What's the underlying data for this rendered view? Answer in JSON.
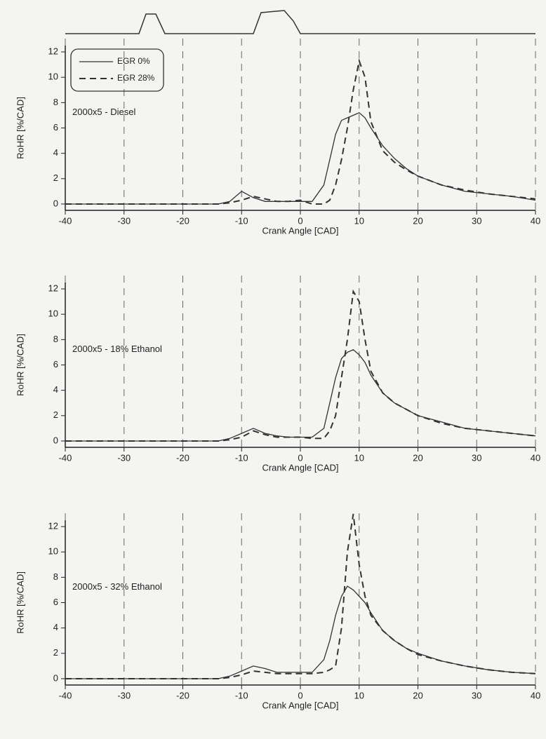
{
  "chart_data": [
    {
      "type": "line",
      "annotation": "2000x5 - Diesel",
      "xlabel": "Crank Angle [CAD]",
      "ylabel": "RoHR [%/CAD]",
      "x": [
        -40,
        -36,
        -32,
        -28,
        -24,
        -20,
        -16,
        -14,
        -12,
        -10,
        -8,
        -6,
        -4,
        -2,
        0,
        2,
        4,
        5,
        6,
        7,
        8,
        9,
        10,
        11,
        12,
        14,
        16,
        18,
        20,
        24,
        28,
        32,
        36,
        40
      ],
      "series": [
        {
          "name": "EGR 0%",
          "color": "#333333",
          "line_style": "solid",
          "values": [
            0,
            0,
            0,
            0,
            0,
            0,
            0,
            0,
            0.2,
            1.0,
            0.5,
            0.2,
            0.2,
            0.2,
            0.2,
            0.2,
            1.5,
            3.5,
            5.5,
            6.6,
            6.8,
            7.0,
            7.2,
            6.8,
            6.0,
            4.6,
            3.6,
            2.8,
            2.2,
            1.5,
            1.0,
            0.8,
            0.6,
            0.3
          ]
        },
        {
          "name": "EGR 28%",
          "color": "#333333",
          "line_style": "dashed",
          "values": [
            0,
            0,
            0,
            0,
            0,
            0,
            0,
            0,
            0.1,
            0.3,
            0.6,
            0.4,
            0.2,
            0.2,
            0.3,
            0,
            0,
            0.3,
            1.5,
            3.5,
            6.0,
            9.0,
            11.3,
            10.0,
            6.5,
            4.2,
            3.3,
            2.7,
            2.2,
            1.5,
            1.1,
            0.8,
            0.6,
            0.4
          ]
        }
      ],
      "xlim": [
        -40,
        40
      ],
      "ylim": [
        -0.5,
        12.5
      ],
      "xticks": [
        -40,
        -30,
        -20,
        -10,
        0,
        10,
        20,
        30,
        40
      ],
      "yticks": [
        0,
        2,
        4,
        6,
        8,
        10,
        12
      ],
      "grid": "x",
      "legend": "upper left"
    },
    {
      "type": "line",
      "annotation": "2000x5 - 18% Ethanol",
      "xlabel": "Crank Angle [CAD]",
      "ylabel": "RoHR [%/CAD]",
      "x": [
        -40,
        -36,
        -32,
        -28,
        -24,
        -20,
        -16,
        -14,
        -12,
        -10,
        -8,
        -6,
        -4,
        -2,
        0,
        2,
        4,
        5,
        6,
        7,
        8,
        9,
        10,
        11,
        12,
        14,
        16,
        18,
        20,
        24,
        28,
        32,
        36,
        40
      ],
      "series": [
        {
          "color": "#333333",
          "line_style": "solid",
          "values": [
            0,
            0,
            0,
            0,
            0,
            0,
            0,
            0,
            0.2,
            0.6,
            1.0,
            0.6,
            0.4,
            0.3,
            0.3,
            0.3,
            1.0,
            3.0,
            5.0,
            6.5,
            7.0,
            7.2,
            6.8,
            6.2,
            5.2,
            3.8,
            3.0,
            2.5,
            2.0,
            1.5,
            1.0,
            0.8,
            0.6,
            0.4
          ]
        },
        {
          "color": "#333333",
          "line_style": "dashed",
          "values": [
            0,
            0,
            0,
            0,
            0,
            0,
            0,
            0,
            0.1,
            0.3,
            0.8,
            0.5,
            0.3,
            0.3,
            0.3,
            0.2,
            0.2,
            0.8,
            2.0,
            5.0,
            8.0,
            11.8,
            11.0,
            8.0,
            5.5,
            3.8,
            3.0,
            2.5,
            2.0,
            1.4,
            1.0,
            0.8,
            0.6,
            0.4
          ]
        }
      ],
      "xlim": [
        -40,
        40
      ],
      "ylim": [
        -0.5,
        12.5
      ],
      "xticks": [
        -40,
        -30,
        -20,
        -10,
        0,
        10,
        20,
        30,
        40
      ],
      "yticks": [
        0,
        2,
        4,
        6,
        8,
        10,
        12
      ],
      "grid": "x"
    },
    {
      "type": "line",
      "annotation": "2000x5 - 32% Ethanol",
      "xlabel": "Crank Angle [CAD]",
      "ylabel": "RoHR [%/CAD]",
      "x": [
        -40,
        -36,
        -32,
        -28,
        -24,
        -20,
        -16,
        -14,
        -12,
        -10,
        -8,
        -6,
        -4,
        -2,
        0,
        2,
        4,
        5,
        6,
        7,
        8,
        9,
        10,
        11,
        12,
        14,
        16,
        18,
        20,
        24,
        28,
        32,
        36,
        40
      ],
      "series": [
        {
          "color": "#333333",
          "line_style": "solid",
          "values": [
            0,
            0,
            0,
            0,
            0,
            0,
            0,
            0,
            0.2,
            0.6,
            1.0,
            0.8,
            0.5,
            0.5,
            0.5,
            0.5,
            1.5,
            3.0,
            5.0,
            6.5,
            7.3,
            7.0,
            6.5,
            6.0,
            5.2,
            3.8,
            3.0,
            2.4,
            2.0,
            1.4,
            1.0,
            0.7,
            0.5,
            0.4
          ]
        },
        {
          "color": "#333333",
          "line_style": "dashed",
          "values": [
            0,
            0,
            0,
            0,
            0,
            0,
            0,
            0,
            0.1,
            0.3,
            0.6,
            0.5,
            0.4,
            0.4,
            0.4,
            0.4,
            0.5,
            0.7,
            1.0,
            4.0,
            10.0,
            13.0,
            9.0,
            6.5,
            5.0,
            3.8,
            3.0,
            2.4,
            1.9,
            1.4,
            1.0,
            0.7,
            0.5,
            0.4
          ]
        }
      ],
      "xlim": [
        -40,
        40
      ],
      "ylim": [
        -0.5,
        12.5
      ],
      "xticks": [
        -40,
        -30,
        -20,
        -10,
        0,
        10,
        20,
        30,
        40
      ],
      "yticks": [
        0,
        2,
        4,
        6,
        8,
        10,
        12
      ],
      "grid": "x"
    }
  ]
}
